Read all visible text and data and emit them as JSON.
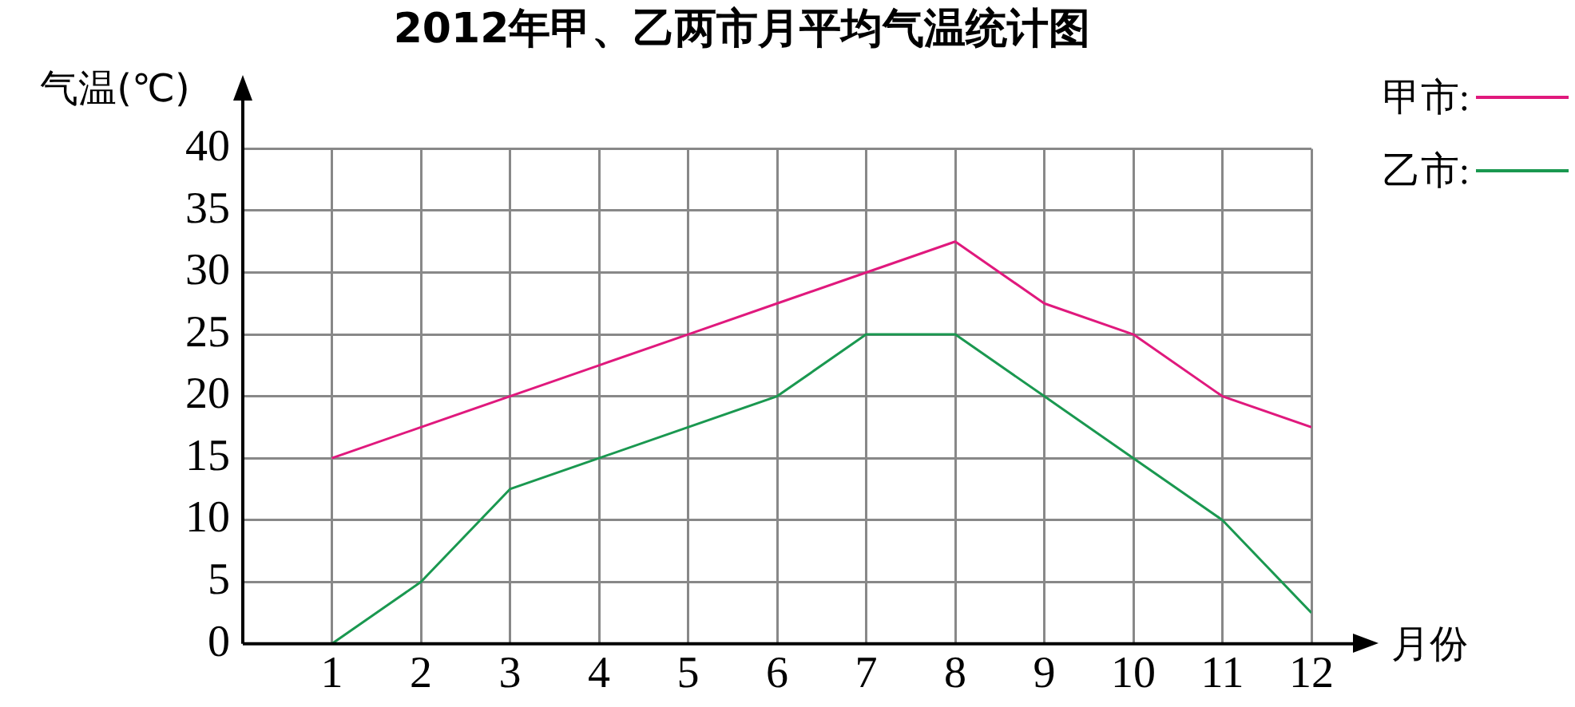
{
  "chart_data": {
    "type": "line",
    "title": "2012年甲、乙两市月平均气温统计图",
    "xlabel": "月份",
    "ylabel": "气温(℃)",
    "x": [
      1,
      2,
      3,
      4,
      5,
      6,
      7,
      8,
      9,
      10,
      11,
      12
    ],
    "xlim": [
      0,
      12
    ],
    "xticks": [
      1,
      2,
      3,
      4,
      5,
      6,
      7,
      8,
      9,
      10,
      11,
      12
    ],
    "ylim": [
      0,
      40
    ],
    "yticks": [
      0,
      5,
      10,
      15,
      20,
      25,
      30,
      35,
      40
    ],
    "grid": true,
    "legend": "top right",
    "marker": "none",
    "line_style": "solid",
    "series": [
      {
        "name": "甲市:",
        "color": "#e0197d",
        "values": [
          15,
          17.5,
          20,
          22.5,
          25,
          27.5,
          30,
          32.5,
          27.5,
          25,
          20,
          17.5
        ]
      },
      {
        "name": "乙市:",
        "color": "#1a9850",
        "values": [
          0,
          5,
          12.5,
          15,
          17.5,
          20,
          25,
          25,
          20,
          15,
          10,
          2.5
        ]
      }
    ]
  }
}
